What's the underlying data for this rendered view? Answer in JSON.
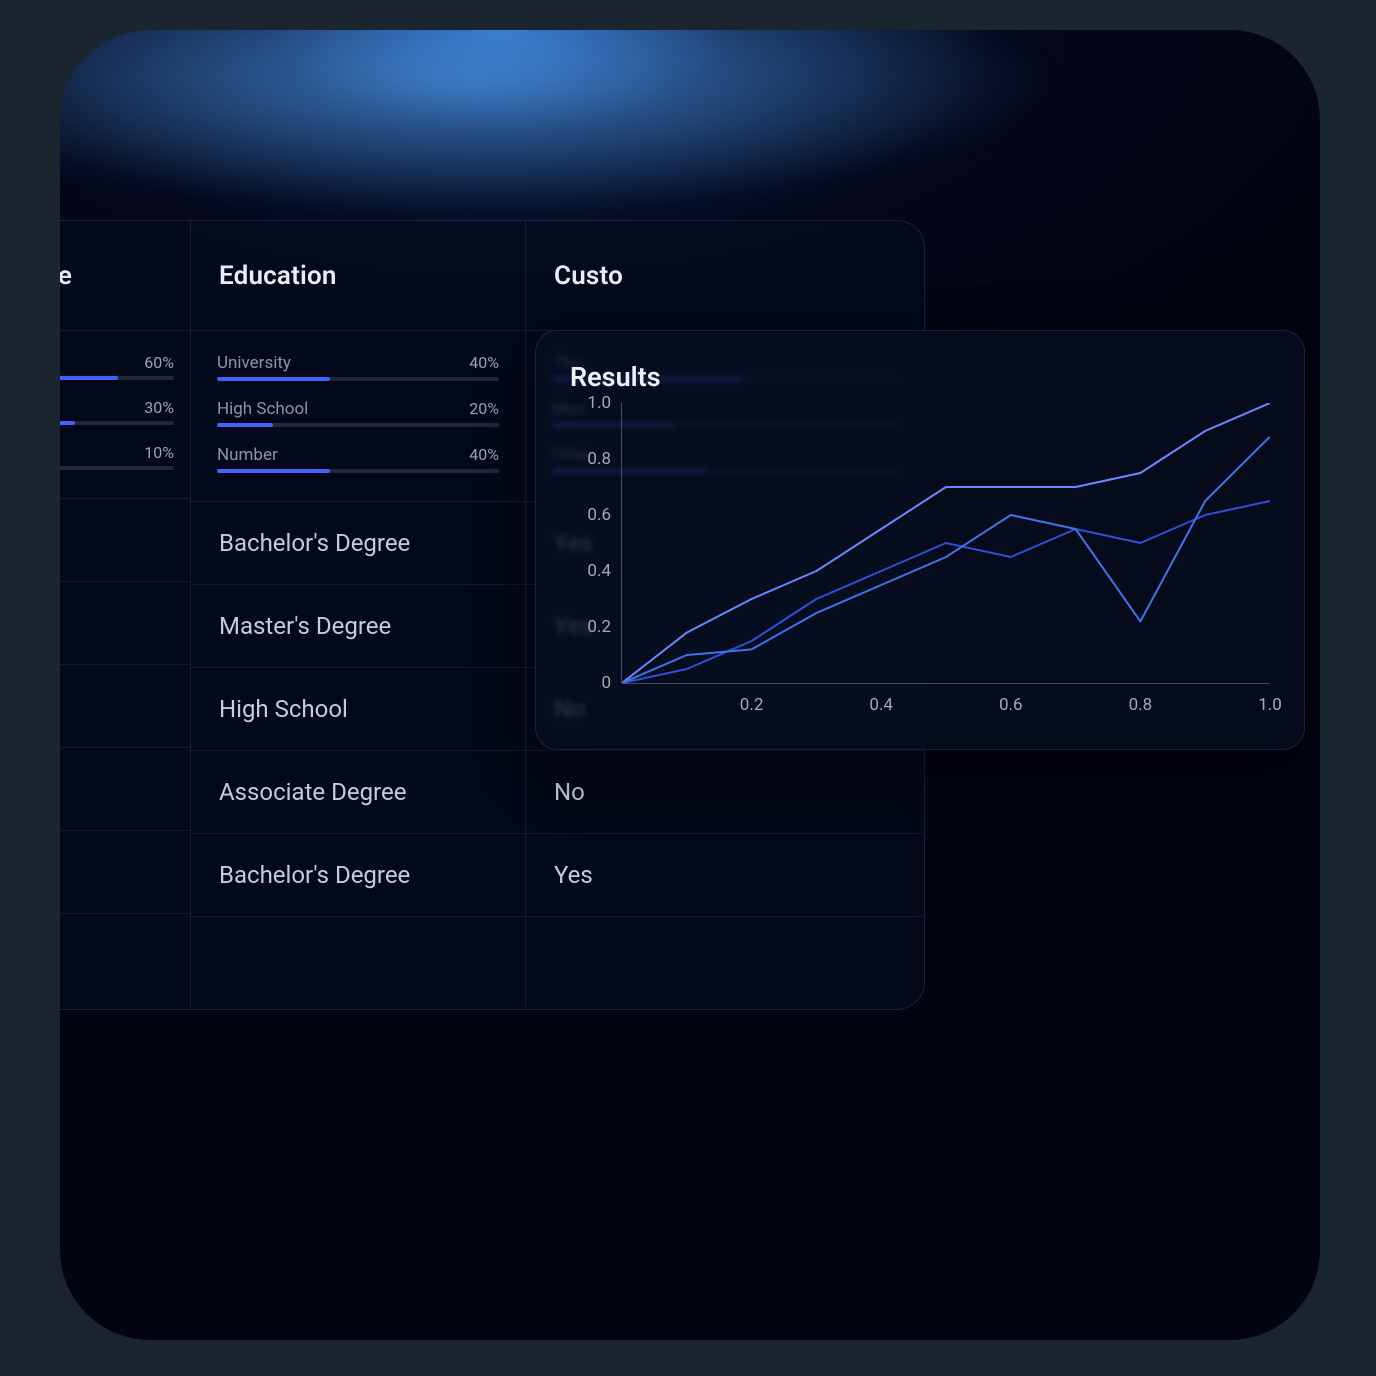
{
  "colors": {
    "accent_bar": "#3e63ff",
    "bar_track": "rgba(90,100,130,0.35)",
    "text_primary": "#e9edf6",
    "text_secondary": "#c6ccdc",
    "text_muted": "#8a93a8",
    "panel_border": "rgba(120,140,200,0.18)",
    "axis_color": "rgba(140,150,190,0.45)"
  },
  "table": {
    "columns": [
      {
        "header": "te",
        "header_truncated_left": true
      },
      {
        "header": "Education"
      },
      {
        "header": "Custo",
        "header_truncated_right": true
      }
    ],
    "summaries": [
      {
        "col": 0,
        "rows": [
          {
            "label": "",
            "value": "60%",
            "fill": 60
          },
          {
            "label": "",
            "value": "30%",
            "fill": 30
          },
          {
            "label": "",
            "value": "10%",
            "fill": 10
          }
        ]
      },
      {
        "col": 1,
        "rows": [
          {
            "label": "University",
            "value": "40%",
            "fill": 40
          },
          {
            "label": "High School",
            "value": "20%",
            "fill": 20
          },
          {
            "label": "Number",
            "value": "40%",
            "fill": 40
          }
        ]
      },
      {
        "col": 2,
        "rows": [
          {
            "label": "Thu",
            "value": "",
            "fill": 55
          },
          {
            "label": "Mon",
            "value": "",
            "fill": 35
          },
          {
            "label": "Other",
            "value": "",
            "fill": 45
          }
        ]
      }
    ],
    "rows": [
      {
        "c0": "",
        "c1": "Bachelor's Degree",
        "c2": "Yes"
      },
      {
        "c0": "",
        "c1": "Master's Degree",
        "c2": "Yes"
      },
      {
        "c0": "",
        "c1": "High School",
        "c2": "No"
      },
      {
        "c0": "",
        "c1": "Associate Degree",
        "c2": "No"
      },
      {
        "c0": "",
        "c1": "Bachelor's Degree",
        "c2": "Yes"
      }
    ]
  },
  "results": {
    "title": "Results",
    "type": "line",
    "xlim": [
      0,
      1.0
    ],
    "ylim": [
      0,
      1.0
    ],
    "xticks": [
      0.2,
      0.4,
      0.6,
      0.8,
      1.0
    ],
    "yticks": [
      0,
      0.2,
      0.4,
      0.6,
      0.8,
      1.0
    ],
    "ytick_labels": [
      "0",
      "0.2",
      "0.4",
      "0.6",
      "0.8",
      "1.0"
    ],
    "xtick_labels": [
      "0.2",
      "0.4",
      "0.6",
      "0.8",
      "1.0"
    ],
    "line_width": 2,
    "series": [
      {
        "color": "#6a87ff",
        "points": [
          [
            0.0,
            0.0
          ],
          [
            0.1,
            0.18
          ],
          [
            0.2,
            0.3
          ],
          [
            0.3,
            0.4
          ],
          [
            0.4,
            0.55
          ],
          [
            0.5,
            0.7
          ],
          [
            0.6,
            0.7
          ],
          [
            0.7,
            0.7
          ],
          [
            0.8,
            0.75
          ],
          [
            0.9,
            0.9
          ],
          [
            1.0,
            1.0
          ]
        ]
      },
      {
        "color": "#2f4fd8",
        "points": [
          [
            0.0,
            0.0
          ],
          [
            0.1,
            0.05
          ],
          [
            0.2,
            0.15
          ],
          [
            0.3,
            0.3
          ],
          [
            0.4,
            0.4
          ],
          [
            0.5,
            0.5
          ],
          [
            0.6,
            0.45
          ],
          [
            0.7,
            0.55
          ],
          [
            0.8,
            0.5
          ],
          [
            0.9,
            0.6
          ],
          [
            1.0,
            0.65
          ]
        ]
      },
      {
        "color": "#3e74e8",
        "points": [
          [
            0.0,
            0.0
          ],
          [
            0.1,
            0.1
          ],
          [
            0.2,
            0.12
          ],
          [
            0.3,
            0.25
          ],
          [
            0.4,
            0.35
          ],
          [
            0.5,
            0.45
          ],
          [
            0.6,
            0.6
          ],
          [
            0.7,
            0.55
          ],
          [
            0.8,
            0.22
          ],
          [
            0.9,
            0.65
          ],
          [
            1.0,
            0.88
          ]
        ]
      }
    ]
  }
}
